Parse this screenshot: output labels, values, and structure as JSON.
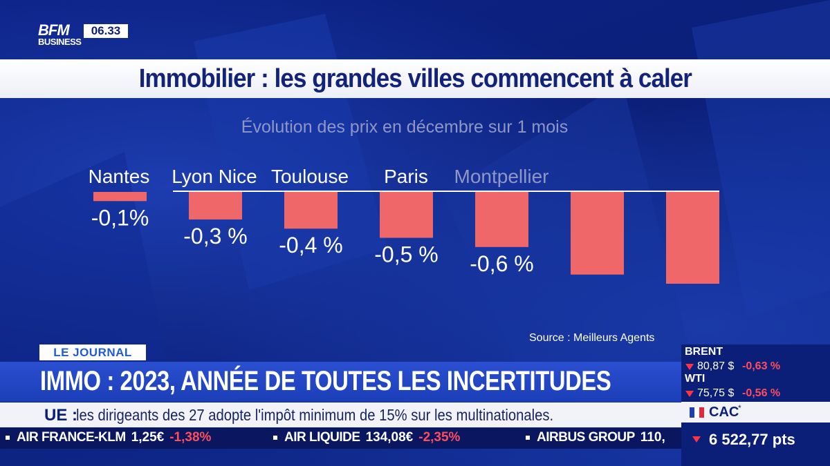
{
  "channel": {
    "logo_line1": "BFM",
    "logo_line2": "BUSINESS",
    "time": "06.33"
  },
  "title": "Immobilier : les grandes villes commencent à caler",
  "chart_data": {
    "type": "bar",
    "title": "",
    "subtitle": "Évolution des prix en décembre sur 1 mois",
    "categories": [
      "Nantes",
      "Lyon",
      "Nice",
      "Toulouse",
      "Paris",
      "Montpellier",
      ""
    ],
    "header_labels": [
      "Nantes",
      "Lyon Nice",
      "Toulouse",
      "Paris",
      "Montpellier"
    ],
    "values": [
      -0.1,
      -0.3,
      -0.4,
      -0.5,
      -0.6,
      -0.9,
      -1.0
    ],
    "data_labels": [
      "-0,1%",
      "-0,3 %",
      "-0,4 %",
      "-0,5 %",
      "-0,6 %",
      "",
      ""
    ],
    "ylim": [
      -1.0,
      0
    ],
    "bar_color": "#f0676a",
    "source": "Source : Meilleurs Agents",
    "grid": false,
    "legend": "none"
  },
  "lower_third": {
    "tag": "LE JOURNAL",
    "headline": "IMMO : 2023, ANNÉE DE TOUTES LES INCERTITUDES",
    "sub_label": "UE :",
    "sub_text": "les dirigeants des 27 adopte l'impôt minimum de 15% sur les multinationales."
  },
  "ticker": [
    {
      "name": "AIR FRANCE-KLM",
      "price": "1,25€",
      "change": "-1,38%"
    },
    {
      "name": "AIR LIQUIDE",
      "price": "134,08€",
      "change": "-2,35%"
    },
    {
      "name": "AIRBUS GROUP",
      "price": "110,",
      "change": ""
    }
  ],
  "markets": {
    "brent": {
      "name": "BRENT",
      "value": "80,87 $",
      "change": "-0,63 %"
    },
    "wti": {
      "name": "WTI",
      "value": "75,75 $",
      "change": "-0,56 %"
    },
    "cac": {
      "name": "CAC",
      "star": "*",
      "value": "6 522,77 pts"
    }
  },
  "colors": {
    "navy": "#0b1f78",
    "accent_blue": "#1f5bd8",
    "down_red": "#ff4d5a"
  }
}
